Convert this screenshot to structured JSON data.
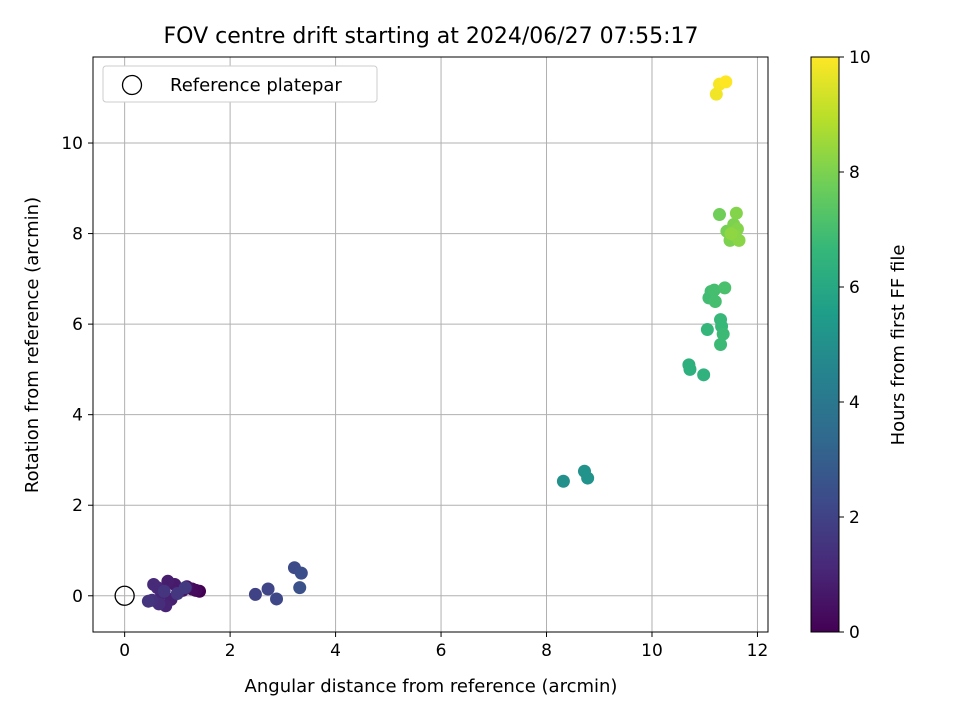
{
  "chart_data": {
    "type": "scatter",
    "title": "FOV centre drift starting at 2024/06/27 07:55:17",
    "xlabel": "Angular distance from reference (arcmin)",
    "ylabel": "Rotation from reference (arcmin)",
    "xlim": [
      -0.6,
      12.2
    ],
    "ylim": [
      -0.8,
      11.9
    ],
    "xticks": [
      0,
      2,
      4,
      6,
      8,
      10,
      12
    ],
    "yticks": [
      0,
      2,
      4,
      6,
      8,
      10
    ],
    "grid": true,
    "legend": {
      "placement": "top-left",
      "entries": [
        "Reference platepar"
      ]
    },
    "reference_point": {
      "x": 0,
      "y": 0,
      "label": "Reference platepar"
    },
    "colorbar": {
      "label": "Hours from first FF file",
      "range": [
        0,
        10
      ],
      "ticks": [
        0,
        2,
        4,
        6,
        8,
        10
      ],
      "colormap": "viridis"
    },
    "points": [
      {
        "x": 1.42,
        "y": 0.1,
        "h": 0.0
      },
      {
        "x": 1.35,
        "y": 0.12,
        "h": 0.2
      },
      {
        "x": 1.28,
        "y": 0.15,
        "h": 0.3
      },
      {
        "x": 1.18,
        "y": 0.2,
        "h": 0.5
      },
      {
        "x": 1.1,
        "y": 0.12,
        "h": 0.6
      },
      {
        "x": 0.95,
        "y": 0.25,
        "h": 0.7
      },
      {
        "x": 0.82,
        "y": 0.32,
        "h": 0.8
      },
      {
        "x": 0.88,
        "y": -0.08,
        "h": 0.9
      },
      {
        "x": 0.78,
        "y": -0.22,
        "h": 1.0
      },
      {
        "x": 0.7,
        "y": 0.05,
        "h": 1.0
      },
      {
        "x": 0.62,
        "y": 0.18,
        "h": 1.1
      },
      {
        "x": 0.55,
        "y": 0.25,
        "h": 1.2
      },
      {
        "x": 0.65,
        "y": -0.18,
        "h": 1.3
      },
      {
        "x": 0.52,
        "y": -0.1,
        "h": 1.4
      },
      {
        "x": 0.45,
        "y": -0.12,
        "h": 1.5
      },
      {
        "x": 0.75,
        "y": 0.1,
        "h": 1.5
      },
      {
        "x": 1.0,
        "y": 0.05,
        "h": 1.6
      },
      {
        "x": 1.15,
        "y": 0.18,
        "h": 1.7
      },
      {
        "x": 2.48,
        "y": 0.03,
        "h": 2.0
      },
      {
        "x": 2.72,
        "y": 0.15,
        "h": 2.1
      },
      {
        "x": 2.88,
        "y": -0.07,
        "h": 2.2
      },
      {
        "x": 3.22,
        "y": 0.62,
        "h": 2.3
      },
      {
        "x": 3.35,
        "y": 0.5,
        "h": 2.4
      },
      {
        "x": 3.32,
        "y": 0.18,
        "h": 2.5
      },
      {
        "x": 8.32,
        "y": 2.53,
        "h": 5.0
      },
      {
        "x": 8.72,
        "y": 2.75,
        "h": 5.1
      },
      {
        "x": 8.78,
        "y": 2.6,
        "h": 5.1
      },
      {
        "x": 10.7,
        "y": 5.1,
        "h": 6.3
      },
      {
        "x": 10.72,
        "y": 5.0,
        "h": 6.3
      },
      {
        "x": 10.98,
        "y": 4.88,
        "h": 6.4
      },
      {
        "x": 11.05,
        "y": 5.88,
        "h": 6.6
      },
      {
        "x": 11.3,
        "y": 6.1,
        "h": 6.7
      },
      {
        "x": 11.32,
        "y": 5.95,
        "h": 6.7
      },
      {
        "x": 11.35,
        "y": 5.78,
        "h": 6.8
      },
      {
        "x": 11.3,
        "y": 5.55,
        "h": 6.8
      },
      {
        "x": 11.08,
        "y": 6.58,
        "h": 6.9
      },
      {
        "x": 11.12,
        "y": 6.72,
        "h": 6.9
      },
      {
        "x": 11.2,
        "y": 6.5,
        "h": 7.0
      },
      {
        "x": 11.18,
        "y": 6.75,
        "h": 7.0
      },
      {
        "x": 11.38,
        "y": 6.8,
        "h": 7.1
      },
      {
        "x": 11.28,
        "y": 8.42,
        "h": 7.8
      },
      {
        "x": 11.42,
        "y": 8.05,
        "h": 7.9
      },
      {
        "x": 11.48,
        "y": 7.85,
        "h": 8.0
      },
      {
        "x": 11.55,
        "y": 8.2,
        "h": 8.0
      },
      {
        "x": 11.6,
        "y": 8.45,
        "h": 8.1
      },
      {
        "x": 11.62,
        "y": 8.1,
        "h": 8.1
      },
      {
        "x": 11.58,
        "y": 7.95,
        "h": 8.2
      },
      {
        "x": 11.65,
        "y": 7.85,
        "h": 8.2
      },
      {
        "x": 11.5,
        "y": 8.0,
        "h": 8.3
      },
      {
        "x": 11.22,
        "y": 11.08,
        "h": 9.8
      },
      {
        "x": 11.28,
        "y": 11.3,
        "h": 9.9
      },
      {
        "x": 11.4,
        "y": 11.35,
        "h": 10.0
      }
    ]
  }
}
